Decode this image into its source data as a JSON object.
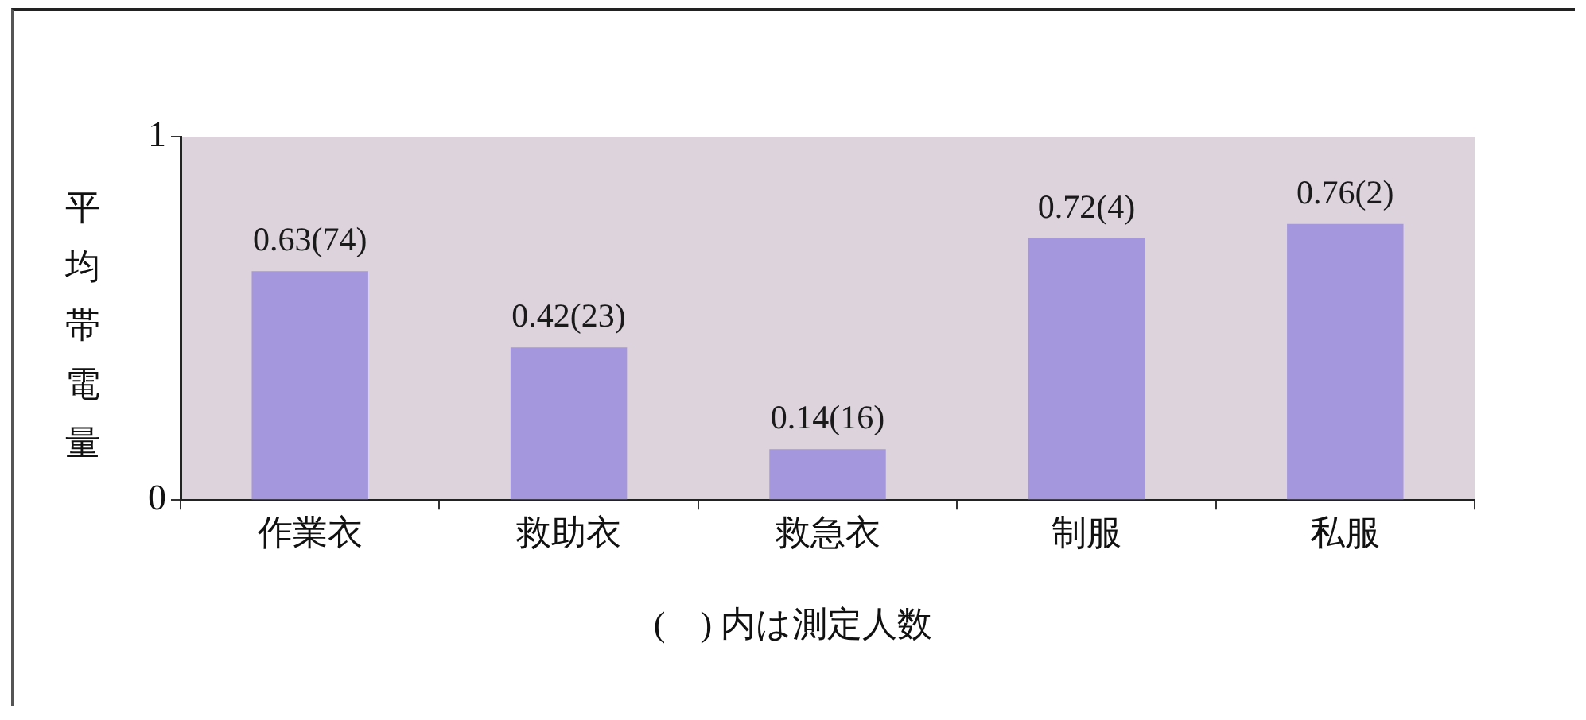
{
  "chart_data": {
    "type": "bar",
    "ylabel": "平均帯電量",
    "categories": [
      "作業衣",
      "救助衣",
      "救急衣",
      "制服",
      "私服"
    ],
    "values": [
      0.63,
      0.42,
      0.14,
      0.72,
      0.76
    ],
    "value_labels": [
      "0.63(74)",
      "0.42(23)",
      "0.14(16)",
      "0.72(4)",
      "0.76(2)"
    ],
    "color": "#a597de",
    "ylim": [
      0,
      1
    ],
    "yticks": [
      0,
      1
    ],
    "grid": false,
    "legend": false,
    "annotations": [
      "(　) 内は測定人数"
    ]
  }
}
